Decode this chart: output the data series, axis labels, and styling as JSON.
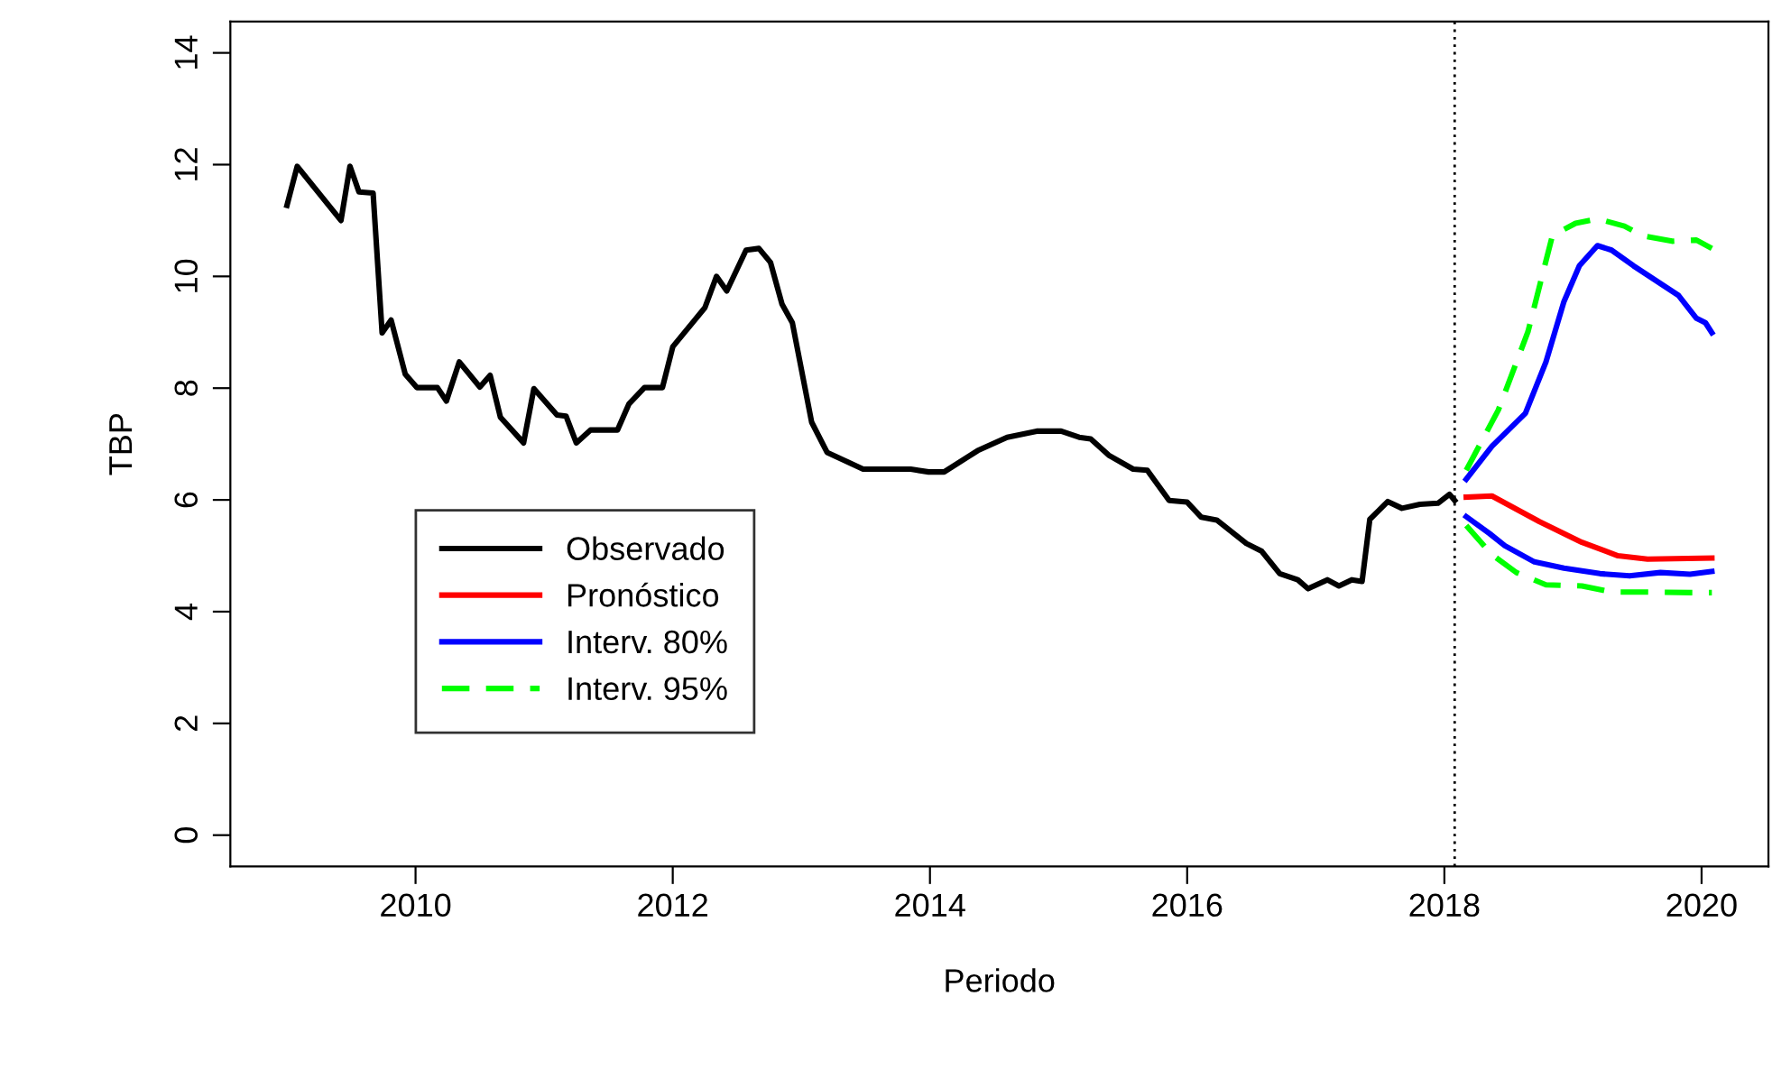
{
  "chart_data": {
    "type": "line",
    "xlabel": "Periodo",
    "ylabel": "TBP",
    "xlim": [
      2008.56,
      2020.52
    ],
    "ylim": [
      -0.56,
      14.56
    ],
    "xticks": [
      2010,
      2012,
      2014,
      2016,
      2018,
      2020
    ],
    "yticks": [
      0,
      2,
      4,
      6,
      8,
      10,
      12,
      14
    ],
    "grid": false,
    "legend": "center left",
    "marker": "none",
    "ref_lines": [
      {
        "axis": "x",
        "value": 2018.08,
        "color": "#000000",
        "line_style": "dotted"
      }
    ],
    "series": [
      {
        "name": "Observado",
        "color": "#000000",
        "line_style": "solid",
        "x": [
          2009.0,
          2009.08,
          2009.42,
          2009.49,
          2009.56,
          2009.67,
          2009.74,
          2009.81,
          2009.92,
          2010.01,
          2010.17,
          2010.24,
          2010.34,
          2010.5,
          2010.58,
          2010.66,
          2010.84,
          2010.92,
          2011.1,
          2011.17,
          2011.25,
          2011.36,
          2011.57,
          2011.66,
          2011.78,
          2011.92,
          2012.0,
          2012.25,
          2012.34,
          2012.42,
          2012.57,
          2012.67,
          2012.76,
          2012.85,
          2012.93,
          2013.08,
          2013.2,
          2013.48,
          2013.85,
          2013.99,
          2014.11,
          2014.37,
          2014.6,
          2014.83,
          2015.02,
          2015.16,
          2015.25,
          2015.39,
          2015.58,
          2015.69,
          2015.86,
          2016.0,
          2016.11,
          2016.23,
          2016.46,
          2016.58,
          2016.72,
          2016.86,
          2016.94,
          2017.09,
          2017.18,
          2017.28,
          2017.36,
          2017.42,
          2017.56,
          2017.67,
          2017.81,
          2017.95,
          2018.04,
          2018.08
        ],
        "values": [
          11.27,
          11.97,
          11.0,
          11.97,
          11.51,
          11.49,
          8.99,
          9.22,
          8.25,
          8.01,
          8.01,
          7.77,
          8.47,
          8.02,
          8.23,
          7.48,
          7.02,
          7.99,
          7.52,
          7.5,
          7.02,
          7.25,
          7.25,
          7.72,
          8.01,
          8.01,
          8.74,
          9.44,
          10.0,
          9.74,
          10.47,
          10.5,
          10.25,
          9.5,
          9.17,
          7.39,
          6.85,
          6.55,
          6.55,
          6.5,
          6.5,
          6.88,
          7.12,
          7.23,
          7.23,
          7.12,
          7.09,
          6.8,
          6.55,
          6.53,
          5.99,
          5.96,
          5.69,
          5.64,
          5.22,
          5.08,
          4.68,
          4.57,
          4.41,
          4.57,
          4.46,
          4.57,
          4.54,
          5.65,
          5.97,
          5.85,
          5.92,
          5.94,
          6.1,
          5.99
        ]
      },
      {
        "name": "Pronóstico",
        "color": "#ff0000",
        "line_style": "solid",
        "x": [
          2018.17,
          2018.37,
          2018.74,
          2019.07,
          2019.35,
          2019.58,
          2020.08
        ],
        "values": [
          6.05,
          6.07,
          5.61,
          5.24,
          5.0,
          4.94,
          4.96
        ]
      },
      {
        "name": "Interv. 80%",
        "color": "#0000ff",
        "line_style": "solid",
        "x": [
          2018.17,
          2018.37,
          2018.63,
          2018.79,
          2018.93,
          2019.05,
          2019.19,
          2019.3,
          2019.47,
          2019.82,
          2019.96,
          2020.03,
          2020.08
        ],
        "values": [
          6.37,
          6.96,
          7.55,
          8.47,
          9.55,
          10.19,
          10.55,
          10.47,
          10.19,
          9.66,
          9.25,
          9.17,
          8.99
        ]
      },
      {
        "color": "#0000ff",
        "line_style": "solid",
        "x": [
          2018.17,
          2018.35,
          2018.47,
          2018.7,
          2018.93,
          2019.21,
          2019.44,
          2019.68,
          2019.91,
          2020.08
        ],
        "values": [
          5.7,
          5.4,
          5.18,
          4.89,
          4.78,
          4.68,
          4.64,
          4.7,
          4.67,
          4.72
        ]
      },
      {
        "name": "Interv. 95%",
        "color": "#00ff00",
        "line_style": "dashed",
        "x": [
          2018.17,
          2018.42,
          2018.65,
          2018.84,
          2019.02,
          2019.19,
          2019.4,
          2019.54,
          2019.77,
          2019.96,
          2020.08
        ],
        "values": [
          6.53,
          7.61,
          9.01,
          10.73,
          10.95,
          11.03,
          10.9,
          10.73,
          10.63,
          10.65,
          10.5
        ]
      },
      {
        "color": "#00ff00",
        "line_style": "dashed",
        "x": [
          2018.17,
          2018.37,
          2018.56,
          2018.79,
          2019.07,
          2019.3,
          2019.58,
          2019.93,
          2020.08
        ],
        "values": [
          5.54,
          5.02,
          4.7,
          4.48,
          4.46,
          4.35,
          4.35,
          4.34,
          4.34
        ]
      }
    ]
  }
}
